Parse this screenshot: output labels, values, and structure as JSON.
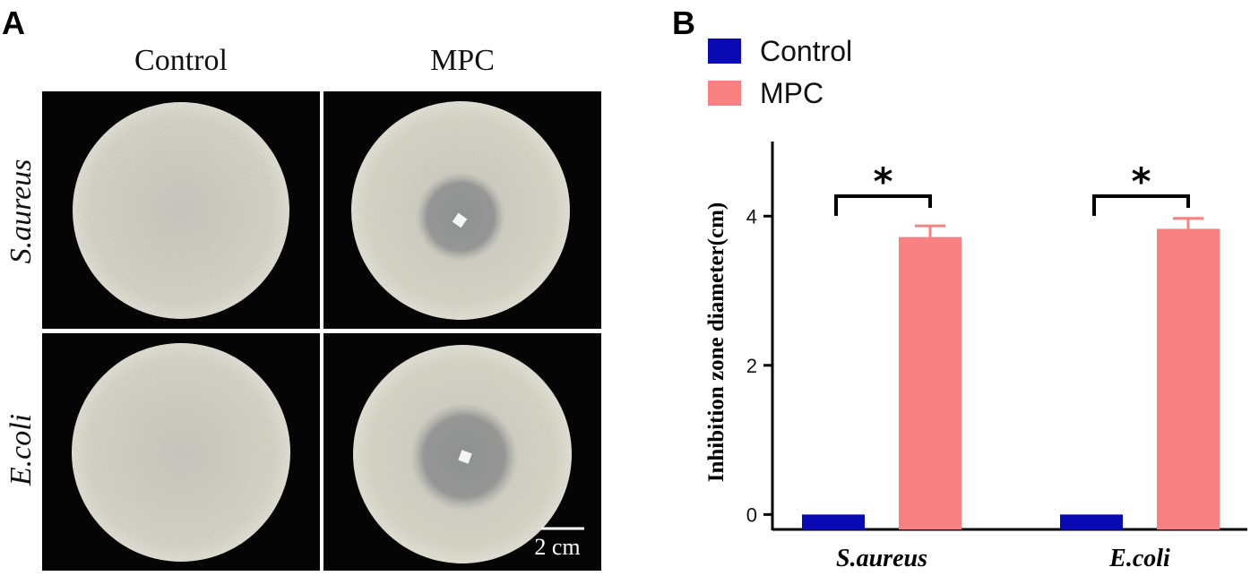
{
  "panel_a": {
    "letter": "A",
    "col_titles": [
      "Control",
      "MPC"
    ],
    "row_titles": [
      "S.aureus",
      "E.coli"
    ],
    "scale_bar_label": "2 cm"
  },
  "panel_b": {
    "letter": "B"
  },
  "chart_data": {
    "type": "bar",
    "categories": [
      "S.aureus",
      "E.coli"
    ],
    "series": [
      {
        "name": "Control",
        "color": "#0a0ab4",
        "values": [
          0,
          0
        ],
        "errors": [
          0,
          0
        ]
      },
      {
        "name": "MPC",
        "color": "#f88080",
        "values": [
          3.72,
          3.83
        ],
        "errors": [
          0.15,
          0.14
        ]
      }
    ],
    "title": "",
    "xlabel": "",
    "ylabel": "Inhibition zone diameter(cm)",
    "ylim": [
      -0.2,
      5
    ],
    "yticks": [
      0,
      2,
      4
    ],
    "ytick_labels": [
      "0",
      "2",
      "4"
    ],
    "legend_position": "top-left",
    "significance": [
      {
        "category": "S.aureus",
        "label": "*"
      },
      {
        "category": "E.coli",
        "label": "*"
      }
    ],
    "grid": false
  }
}
